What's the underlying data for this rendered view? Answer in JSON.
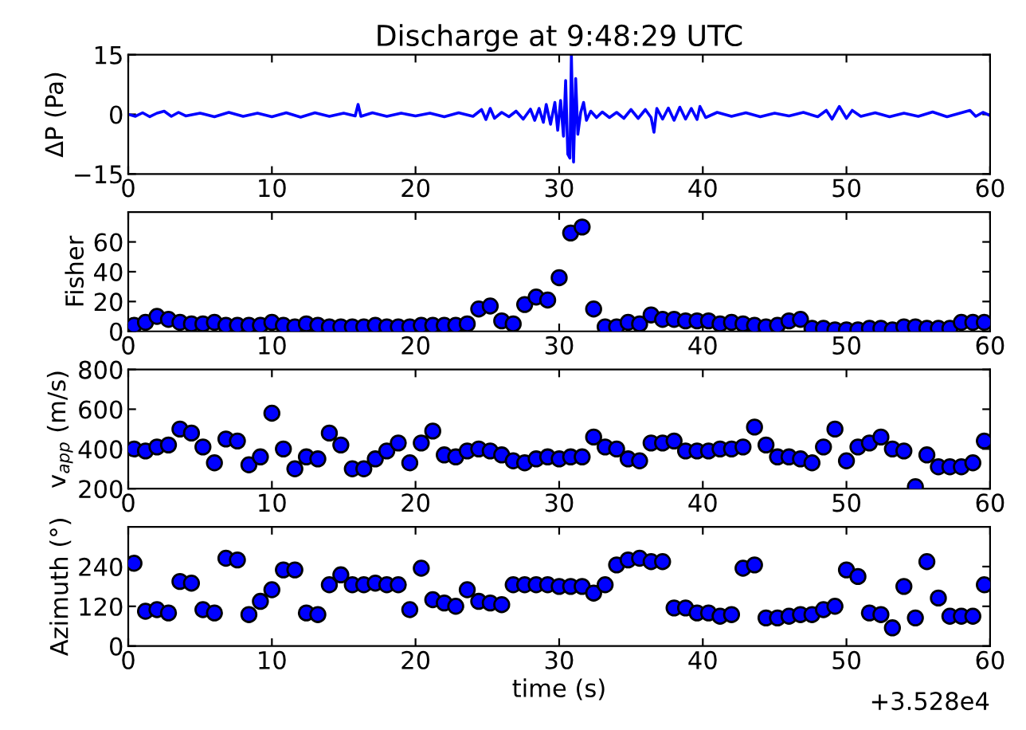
{
  "chart_data": [
    {
      "type": "line",
      "title": "Discharge at 9:48:29 UTC",
      "ylabel": "ΔP (Pa)",
      "xlim": [
        0,
        60
      ],
      "ylim": [
        -15,
        15
      ],
      "yticks": [
        {
          "value": -15,
          "label": "−15"
        },
        0,
        15
      ],
      "xticks": [
        0,
        10,
        20,
        30,
        40,
        50,
        60
      ],
      "grid": false,
      "line_style": "solid",
      "marker": "none",
      "series": [
        {
          "color": "#0000ff",
          "x": [
            0,
            0.5,
            1,
            1.5,
            2,
            2.5,
            3,
            3.5,
            4,
            5,
            6,
            7,
            8,
            9,
            10,
            11,
            12,
            13,
            14,
            15,
            15.8,
            16,
            16.2,
            17,
            18,
            19,
            20,
            21,
            22,
            23,
            24,
            24.6,
            24.9,
            25.2,
            25.5,
            26,
            26.5,
            27,
            27.5,
            28,
            28.3,
            28.6,
            28.9,
            29.1,
            29.4,
            29.7,
            29.9,
            30.1,
            30.3,
            30.45,
            30.6,
            30.75,
            30.85,
            31,
            31.15,
            31.3,
            31.5,
            31.7,
            31.9,
            32.2,
            32.6,
            33,
            33.5,
            34,
            34.5,
            35,
            35.5,
            36,
            36.4,
            36.6,
            36.8,
            37.2,
            37.6,
            38,
            38.4,
            38.8,
            39.2,
            39.6,
            39.8,
            40.2,
            41,
            42,
            43,
            44,
            45,
            46,
            47,
            48,
            48.6,
            49,
            49.5,
            50,
            50.4,
            51,
            52,
            53,
            54,
            55,
            56,
            57,
            58,
            58.6,
            59,
            59.5,
            60
          ],
          "values": [
            0,
            -0.5,
            0.4,
            -0.6,
            0.3,
            0.8,
            -0.5,
            0.5,
            -0.4,
            0.3,
            -0.6,
            0.5,
            -0.5,
            0.3,
            -0.6,
            0.4,
            -0.7,
            0.4,
            -0.5,
            0.3,
            -0.4,
            2.5,
            -0.5,
            0.4,
            -0.5,
            0.3,
            -0.4,
            0.3,
            -0.6,
            0.4,
            -0.5,
            1.2,
            -1.3,
            1.5,
            -1.0,
            0.5,
            -0.6,
            0.8,
            -1.2,
            1.3,
            -1.5,
            1.5,
            -2.0,
            2.5,
            -2.5,
            3.0,
            -4.0,
            3.5,
            -5.5,
            8.5,
            -10,
            -11,
            15,
            -12,
            9,
            -5,
            0.5,
            3.0,
            -1.5,
            0.8,
            -0.8,
            0.6,
            -0.8,
            0.5,
            -1.0,
            1.2,
            -1.0,
            1.2,
            -0.8,
            -4.5,
            1.5,
            -1.2,
            1.6,
            -1.5,
            1.8,
            -1.2,
            1.5,
            -1.3,
            2.0,
            -0.8,
            0.5,
            -0.5,
            0.4,
            -0.6,
            0.3,
            -0.4,
            0.5,
            -0.6,
            1.0,
            -1.2,
            2.0,
            -1.0,
            1.0,
            -0.5,
            0.4,
            -0.6,
            0.3,
            -0.5,
            0.6,
            -0.6,
            0.4,
            1.0,
            -0.5,
            0.5,
            -0.3
          ]
        }
      ]
    },
    {
      "type": "scatter",
      "ylabel": "Fisher",
      "xlim": [
        0,
        60
      ],
      "ylim": [
        0,
        80
      ],
      "yticks": [
        0,
        20,
        40,
        60
      ],
      "xticks": [
        0,
        10,
        20,
        30,
        40,
        50,
        60
      ],
      "grid": false,
      "marker": "circle",
      "x": [
        0.4,
        1.2,
        2.0,
        2.8,
        3.6,
        4.4,
        5.2,
        6.0,
        6.8,
        7.6,
        8.4,
        9.2,
        10.0,
        10.8,
        11.6,
        12.4,
        13.2,
        14.0,
        14.8,
        15.6,
        16.4,
        17.2,
        18.0,
        18.8,
        19.6,
        20.4,
        21.2,
        22.0,
        22.8,
        23.6,
        24.4,
        25.2,
        26.0,
        26.8,
        27.6,
        28.4,
        29.2,
        30.0,
        30.8,
        31.6,
        32.4,
        33.2,
        34.0,
        34.8,
        35.6,
        36.4,
        37.2,
        38.0,
        38.8,
        39.6,
        40.4,
        41.2,
        42.0,
        42.8,
        43.6,
        44.4,
        45.2,
        46.0,
        46.8,
        47.6,
        48.4,
        49.2,
        50.0,
        50.8,
        51.6,
        52.4,
        53.2,
        54.0,
        54.8,
        55.6,
        56.4,
        57.2,
        58.0,
        58.8,
        59.6
      ],
      "series": [
        {
          "color": "#0000ff",
          "values": [
            4,
            6,
            10,
            8,
            6,
            5,
            5,
            6,
            4,
            4,
            4,
            4,
            6,
            4,
            3,
            5,
            4,
            3,
            3,
            3,
            3,
            4,
            3,
            3,
            3,
            4,
            4,
            4,
            4,
            5,
            15,
            17,
            7,
            5,
            18,
            23,
            21,
            36,
            66,
            70,
            15,
            3,
            3,
            6,
            5,
            11,
            8,
            8,
            7,
            7,
            7,
            5,
            6,
            5,
            4,
            3,
            4,
            7,
            8,
            2,
            2,
            1,
            1,
            1,
            2,
            2,
            1,
            3,
            3,
            2,
            2,
            2,
            6,
            6,
            6
          ]
        }
      ]
    },
    {
      "type": "scatter",
      "ylabel": "v$_{app}$ (m/s)",
      "xlim": [
        0,
        60
      ],
      "ylim": [
        200,
        800
      ],
      "yticks": [
        200,
        400,
        600,
        800
      ],
      "xticks": [
        0,
        10,
        20,
        30,
        40,
        50,
        60
      ],
      "grid": false,
      "marker": "circle",
      "x": [
        0.4,
        1.2,
        2.0,
        2.8,
        3.6,
        4.4,
        5.2,
        6.0,
        6.8,
        7.6,
        8.4,
        9.2,
        10.0,
        10.8,
        11.6,
        12.4,
        13.2,
        14.0,
        14.8,
        15.6,
        16.4,
        17.2,
        18.0,
        18.8,
        19.6,
        20.4,
        21.2,
        22.0,
        22.8,
        23.6,
        24.4,
        25.2,
        26.0,
        26.8,
        27.6,
        28.4,
        29.2,
        30.0,
        30.8,
        31.6,
        32.4,
        33.2,
        34.0,
        34.8,
        35.6,
        36.4,
        37.2,
        38.0,
        38.8,
        39.6,
        40.4,
        41.2,
        42.0,
        42.8,
        43.6,
        44.4,
        45.2,
        46.0,
        46.8,
        47.6,
        48.4,
        49.2,
        50.0,
        50.8,
        51.6,
        52.4,
        53.2,
        54.0,
        54.8,
        55.6,
        56.4,
        57.2,
        58.0,
        58.8,
        59.6
      ],
      "series": [
        {
          "color": "#0000ff",
          "values": [
            400,
            390,
            410,
            420,
            500,
            480,
            410,
            330,
            450,
            440,
            320,
            360,
            580,
            400,
            300,
            360,
            350,
            480,
            420,
            300,
            300,
            350,
            390,
            430,
            330,
            430,
            490,
            370,
            360,
            390,
            400,
            390,
            370,
            340,
            330,
            350,
            360,
            350,
            360,
            360,
            460,
            410,
            400,
            350,
            340,
            430,
            430,
            440,
            390,
            390,
            390,
            400,
            400,
            410,
            510,
            420,
            360,
            360,
            350,
            330,
            410,
            500,
            340,
            410,
            430,
            460,
            400,
            390,
            210,
            370,
            310,
            310,
            310,
            330,
            440
          ]
        }
      ]
    },
    {
      "type": "scatter",
      "ylabel": "Azimuth (°)",
      "xlabel": "time (s)",
      "annotations": [
        "+3.528e4"
      ],
      "xlim": [
        0,
        60
      ],
      "ylim": [
        0,
        360
      ],
      "yticks": [
        0,
        120,
        240
      ],
      "xticks": [
        0,
        10,
        20,
        30,
        40,
        50,
        60
      ],
      "grid": false,
      "marker": "circle",
      "x": [
        0.4,
        1.2,
        2.0,
        2.8,
        3.6,
        4.4,
        5.2,
        6.0,
        6.8,
        7.6,
        8.4,
        9.2,
        10.0,
        10.8,
        11.6,
        12.4,
        13.2,
        14.0,
        14.8,
        15.6,
        16.4,
        17.2,
        18.0,
        18.8,
        19.6,
        20.4,
        21.2,
        22.0,
        22.8,
        23.6,
        24.4,
        25.2,
        26.0,
        26.8,
        27.6,
        28.4,
        29.2,
        30.0,
        30.8,
        31.6,
        32.4,
        33.2,
        34.0,
        34.8,
        35.6,
        36.4,
        37.2,
        38.0,
        38.8,
        39.6,
        40.4,
        41.2,
        42.0,
        42.8,
        43.6,
        44.4,
        45.2,
        46.0,
        46.8,
        47.6,
        48.4,
        49.2,
        50.0,
        50.8,
        51.6,
        52.4,
        53.2,
        54.0,
        54.8,
        55.6,
        56.4,
        57.2,
        58.0,
        58.8,
        59.6
      ],
      "series": [
        {
          "color": "#0000ff",
          "values": [
            250,
            105,
            110,
            100,
            195,
            190,
            110,
            100,
            265,
            260,
            95,
            135,
            170,
            230,
            230,
            100,
            95,
            185,
            215,
            185,
            185,
            190,
            185,
            185,
            110,
            235,
            140,
            130,
            120,
            170,
            135,
            130,
            125,
            185,
            185,
            185,
            185,
            180,
            180,
            180,
            160,
            185,
            245,
            260,
            265,
            255,
            255,
            115,
            115,
            100,
            100,
            90,
            95,
            235,
            245,
            85,
            85,
            90,
            95,
            95,
            110,
            120,
            230,
            210,
            100,
            95,
            55,
            180,
            85,
            255,
            145,
            90,
            90,
            90,
            185
          ]
        }
      ]
    }
  ]
}
